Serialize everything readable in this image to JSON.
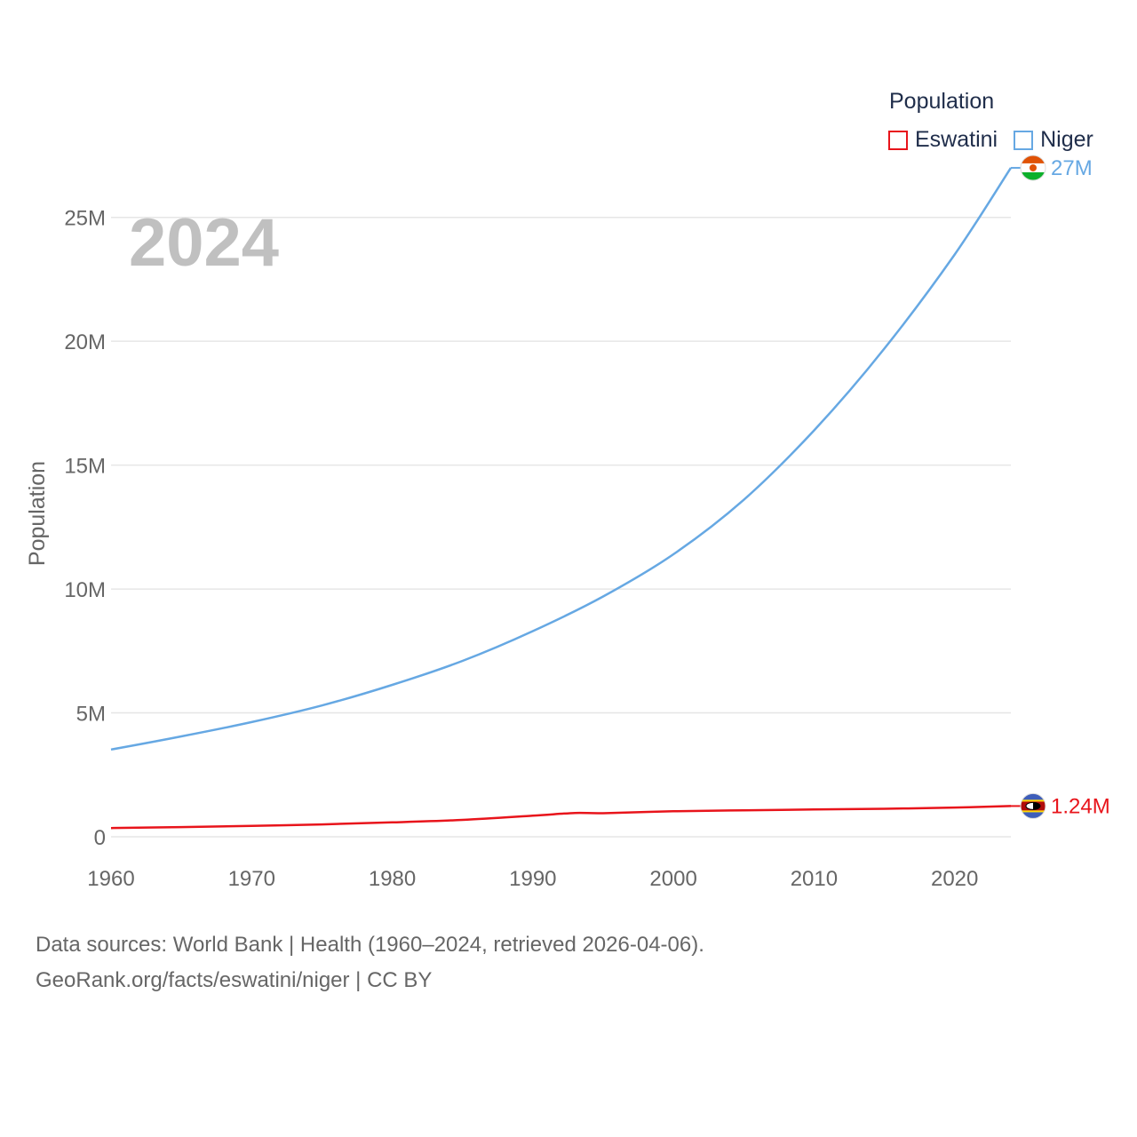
{
  "legend": {
    "title": "Population",
    "items": [
      {
        "label": "Eswatini",
        "color": "#e8141b"
      },
      {
        "label": "Niger",
        "color": "#66a8e3"
      }
    ]
  },
  "footer": {
    "line1": "Data sources: World Bank | Health (1960–2024, retrieved 2026-04-06).",
    "line2": "GeoRank.org/facts/eswatini/niger | CC BY"
  },
  "chart_data": {
    "type": "line",
    "title": "",
    "year_label": "2024",
    "xlabel": "",
    "ylabel": "Population",
    "xlim": [
      1960,
      2024
    ],
    "ylim": [
      0,
      27500000
    ],
    "x_ticks": [
      1960,
      1970,
      1980,
      1990,
      2000,
      2010,
      2020
    ],
    "y_ticks": [
      0,
      5000000,
      10000000,
      15000000,
      20000000,
      25000000
    ],
    "y_tick_labels": [
      "0",
      "5M",
      "10M",
      "15M",
      "20M",
      "25M"
    ],
    "grid": true,
    "series": [
      {
        "name": "Niger",
        "color": "#66a8e3",
        "end_label": "27M",
        "flag": "niger",
        "x": [
          1960,
          1965,
          1970,
          1975,
          1980,
          1985,
          1990,
          1995,
          2000,
          2005,
          2010,
          2015,
          2020,
          2024
        ],
        "values": [
          3520000,
          4050000,
          4630000,
          5300000,
          6130000,
          7100000,
          8300000,
          9700000,
          11400000,
          13600000,
          16400000,
          19700000,
          23500000,
          27000000
        ]
      },
      {
        "name": "Eswatini",
        "color": "#e8141b",
        "end_label": "1.24M",
        "flag": "eswatini",
        "x": [
          1960,
          1965,
          1970,
          1975,
          1980,
          1985,
          1990,
          1993,
          1995,
          2000,
          2005,
          2010,
          2015,
          2020,
          2024
        ],
        "values": [
          350000,
          390000,
          440000,
          500000,
          580000,
          680000,
          850000,
          960000,
          950000,
          1030000,
          1070000,
          1100000,
          1130000,
          1180000,
          1240000
        ]
      }
    ]
  }
}
